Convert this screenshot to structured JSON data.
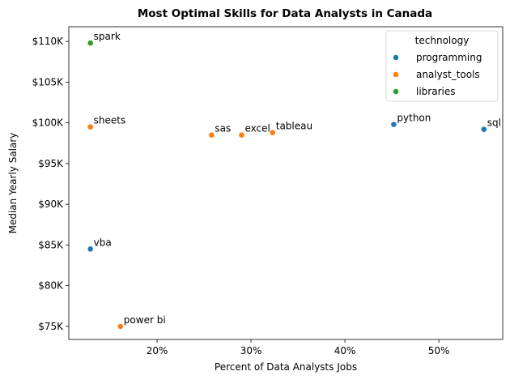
{
  "chart_data": {
    "type": "scatter",
    "title": "Most Optimal Skills for Data Analysts in Canada",
    "xlabel": "Percent of Data Analysts Jobs",
    "ylabel": "Median Yearly Salary",
    "xlim": [
      10.6,
      56.8
    ],
    "ylim": [
      73400,
      111800
    ],
    "x_ticks": [
      20,
      30,
      40,
      50
    ],
    "x_tick_labels": [
      "20%",
      "30%",
      "40%",
      "50%"
    ],
    "y_ticks": [
      75000,
      80000,
      85000,
      90000,
      95000,
      100000,
      105000,
      110000
    ],
    "y_tick_labels": [
      "$75K",
      "$80K",
      "$85K",
      "$90K",
      "$95K",
      "$100K",
      "$105K",
      "$110K"
    ],
    "grid": false,
    "legend": {
      "title": "technology",
      "placement": "top-right",
      "entries": [
        {
          "name": "programming",
          "color": "#1f77b4"
        },
        {
          "name": "analyst_tools",
          "color": "#ff7f0e"
        },
        {
          "name": "libraries",
          "color": "#2ca02c"
        }
      ]
    },
    "points": [
      {
        "skill": "spark",
        "x": 12.9,
        "y": 109800,
        "technology": "libraries"
      },
      {
        "skill": "sheets",
        "x": 12.9,
        "y": 99500,
        "technology": "analyst_tools"
      },
      {
        "skill": "vba",
        "x": 12.9,
        "y": 84500,
        "technology": "programming"
      },
      {
        "skill": "power bi",
        "x": 16.1,
        "y": 75000,
        "technology": "analyst_tools"
      },
      {
        "skill": "sas",
        "x": 25.8,
        "y": 98500,
        "technology": "analyst_tools"
      },
      {
        "skill": "excel",
        "x": 29.0,
        "y": 98500,
        "technology": "analyst_tools"
      },
      {
        "skill": "tableau",
        "x": 32.3,
        "y": 98800,
        "technology": "analyst_tools"
      },
      {
        "skill": "python",
        "x": 45.2,
        "y": 99800,
        "technology": "programming"
      },
      {
        "skill": "sql",
        "x": 54.8,
        "y": 99200,
        "technology": "programming"
      }
    ]
  }
}
